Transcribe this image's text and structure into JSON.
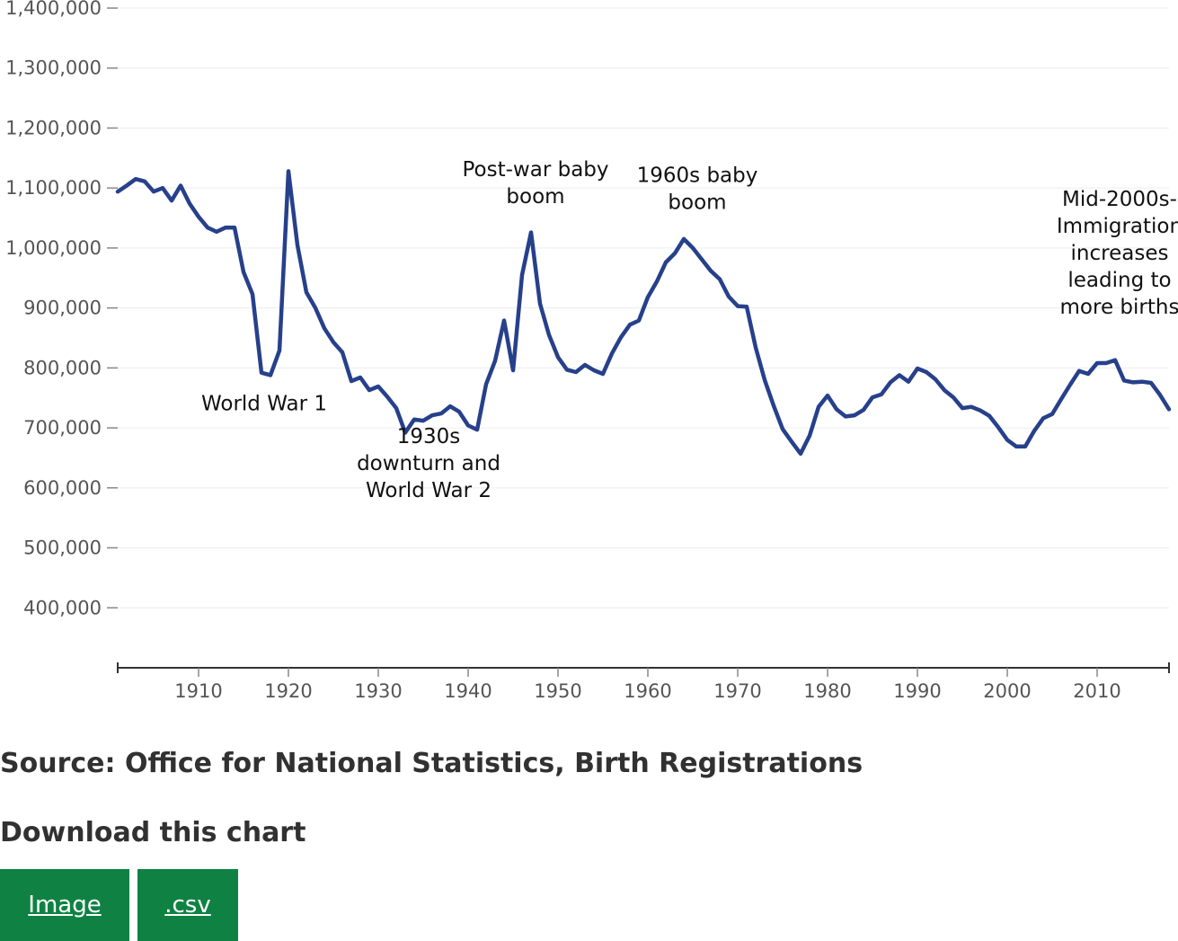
{
  "chart_data": {
    "type": "line",
    "x": [
      1901,
      1902,
      1903,
      1904,
      1905,
      1906,
      1907,
      1908,
      1909,
      1910,
      1911,
      1912,
      1913,
      1914,
      1915,
      1916,
      1917,
      1918,
      1919,
      1920,
      1921,
      1922,
      1923,
      1924,
      1925,
      1926,
      1927,
      1928,
      1929,
      1930,
      1931,
      1932,
      1933,
      1934,
      1935,
      1936,
      1937,
      1938,
      1939,
      1940,
      1941,
      1942,
      1943,
      1944,
      1945,
      1946,
      1947,
      1948,
      1949,
      1950,
      1951,
      1952,
      1953,
      1954,
      1955,
      1956,
      1957,
      1958,
      1959,
      1960,
      1961,
      1962,
      1963,
      1964,
      1965,
      1966,
      1967,
      1968,
      1969,
      1970,
      1971,
      1972,
      1973,
      1974,
      1975,
      1976,
      1977,
      1978,
      1979,
      1980,
      1981,
      1982,
      1983,
      1984,
      1985,
      1986,
      1987,
      1988,
      1989,
      1990,
      1991,
      1992,
      1993,
      1994,
      1995,
      1996,
      1997,
      1998,
      1999,
      2000,
      2001,
      2002,
      2003,
      2004,
      2005,
      2006,
      2007,
      2008,
      2009,
      2010,
      2011,
      2012,
      2013,
      2014,
      2015,
      2016,
      2017,
      2018
    ],
    "series": [
      {
        "color": "#27408b",
        "values": [
          1094000,
          1104000,
          1115000,
          1111000,
          1094000,
          1100000,
          1079000,
          1104000,
          1074000,
          1052000,
          1034000,
          1027000,
          1034000,
          1034000,
          960000,
          923000,
          792000,
          788000,
          829000,
          1128000,
          1005000,
          926000,
          900000,
          866000,
          843000,
          826000,
          778000,
          784000,
          763000,
          769000,
          752000,
          733000,
          692000,
          714000,
          712000,
          721000,
          724000,
          736000,
          727000,
          704000,
          697000,
          773000,
          812000,
          879000,
          796000,
          955000,
          1026000,
          907000,
          855000,
          818000,
          797000,
          793000,
          805000,
          796000,
          790000,
          824000,
          851000,
          872000,
          879000,
          918000,
          944000,
          976000,
          991000,
          1015000,
          1000000,
          981000,
          962000,
          948000,
          919000,
          903000,
          902000,
          834000,
          780000,
          737000,
          698000,
          677000,
          657000,
          687000,
          735000,
          754000,
          731000,
          719000,
          721000,
          730000,
          751000,
          756000,
          776000,
          788000,
          777000,
          799000,
          793000,
          781000,
          763000,
          751000,
          733000,
          735000,
          729000,
          720000,
          701000,
          680000,
          669000,
          669000,
          695000,
          716000,
          723000,
          748000,
          772000,
          795000,
          790000,
          808000,
          808000,
          813000,
          779000,
          776000,
          777000,
          775000,
          755000,
          731000
        ]
      }
    ],
    "xlim": [
      1901,
      2018
    ],
    "xticks": [
      1910,
      1920,
      1930,
      1940,
      1950,
      1960,
      1970,
      1980,
      1990,
      2000,
      2010
    ],
    "ylim": [
      300000,
      1400000
    ],
    "yticks": [
      400000,
      500000,
      600000,
      700000,
      800000,
      900000,
      1000000,
      1100000,
      1200000,
      1300000,
      1400000
    ],
    "ytick_labels": [
      "400,000",
      "500,000",
      "600,000",
      "700,000",
      "800,000",
      "900,000",
      "1,000,000",
      "1,100,000",
      "1,200,000",
      "1,300,000",
      "1,400,000"
    ],
    "grid": "horizontal",
    "annotations": [
      {
        "lines": [
          "World War 1"
        ],
        "x": 1917.3,
        "y": 729000
      },
      {
        "lines": [
          "1930s",
          "downturn and",
          "World War 2"
        ],
        "x": 1935.6,
        "y": 675000
      },
      {
        "lines": [
          "Post-war baby",
          "boom"
        ],
        "x": 1947.5,
        "y": 1120000
      },
      {
        "lines": [
          "1960s baby",
          "boom"
        ],
        "x": 1965.5,
        "y": 1110000
      },
      {
        "lines": [
          "Mid-2000s-",
          "Immigration",
          "increases",
          "leading to",
          "more births"
        ],
        "x": 2012.5,
        "y": 1070000
      }
    ]
  },
  "source": "Source: Office for National Statistics, Birth Registrations",
  "download": {
    "title": "Download this chart",
    "image_label": "Image",
    "csv_label": ".csv"
  }
}
